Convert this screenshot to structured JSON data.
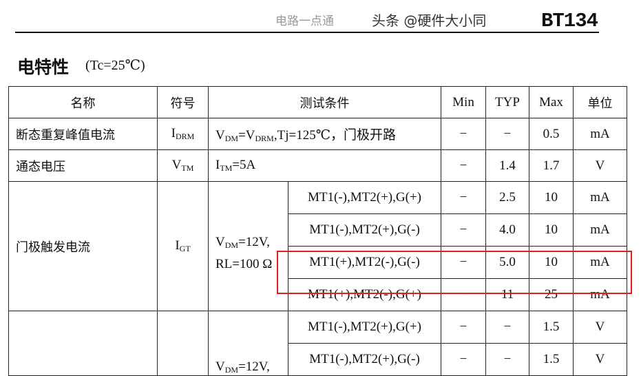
{
  "header": {
    "part": "BT134",
    "section": "电特性",
    "condition": "(Tc=25℃)"
  },
  "table": {
    "headers": [
      "名称",
      "符号",
      "测试条件",
      "Min",
      "TYP",
      "Max",
      "单位"
    ],
    "rows": [
      {
        "name": "断态重复峰值电流",
        "sym": "I",
        "sym_sub": "DRM",
        "cond": "V<sub>DM</sub>=V<sub>DRM</sub>,Tj=125℃，门极开路",
        "min": "−",
        "typ": "−",
        "max": "0.5",
        "unit": "mA"
      },
      {
        "name": "通态电压",
        "sym": "V",
        "sym_sub": "TM",
        "cond": "I<sub>TM</sub>=5A",
        "min": "−",
        "typ": "1.4",
        "max": "1.7",
        "unit": "V"
      }
    ],
    "igt": {
      "name": "门极触发电流",
      "sym": "I",
      "sym_sub": "GT",
      "cond_line1": "V",
      "cond_line1_sub": "DM",
      "cond_line1_rest": "=12V,",
      "cond_line2": "RL=100 Ω",
      "sub": [
        {
          "mode": "MT1(-),MT2(+),G(+)",
          "min": "−",
          "typ": "2.5",
          "max": "10",
          "unit": "mA"
        },
        {
          "mode": "MT1(-),MT2(+),G(-)",
          "min": "−",
          "typ": "4.0",
          "max": "10",
          "unit": "mA"
        },
        {
          "mode": "MT1(+),MT2(-),G(-)",
          "min": "−",
          "typ": "5.0",
          "max": "10",
          "unit": "mA"
        },
        {
          "mode": "MT1(+),MT2(-),G(+)",
          "min": "−",
          "typ": "11",
          "max": "25",
          "unit": "mA"
        }
      ]
    },
    "vgt": {
      "cond_line1": "V",
      "cond_line1_sub": "DM",
      "cond_line1_rest": "=12V,",
      "sub": [
        {
          "mode": "MT1(-),MT2(+),G(+)",
          "min": "−",
          "typ": "−",
          "max": "1.5",
          "unit": "V"
        },
        {
          "mode": "MT1(-),MT2(+),G(-)",
          "min": "−",
          "typ": "−",
          "max": "1.5",
          "unit": "V"
        }
      ]
    }
  },
  "watermark": {
    "text1": "头条 @硬件大小同",
    "text2": "电路一点通"
  },
  "highlight_color": "#e02020"
}
